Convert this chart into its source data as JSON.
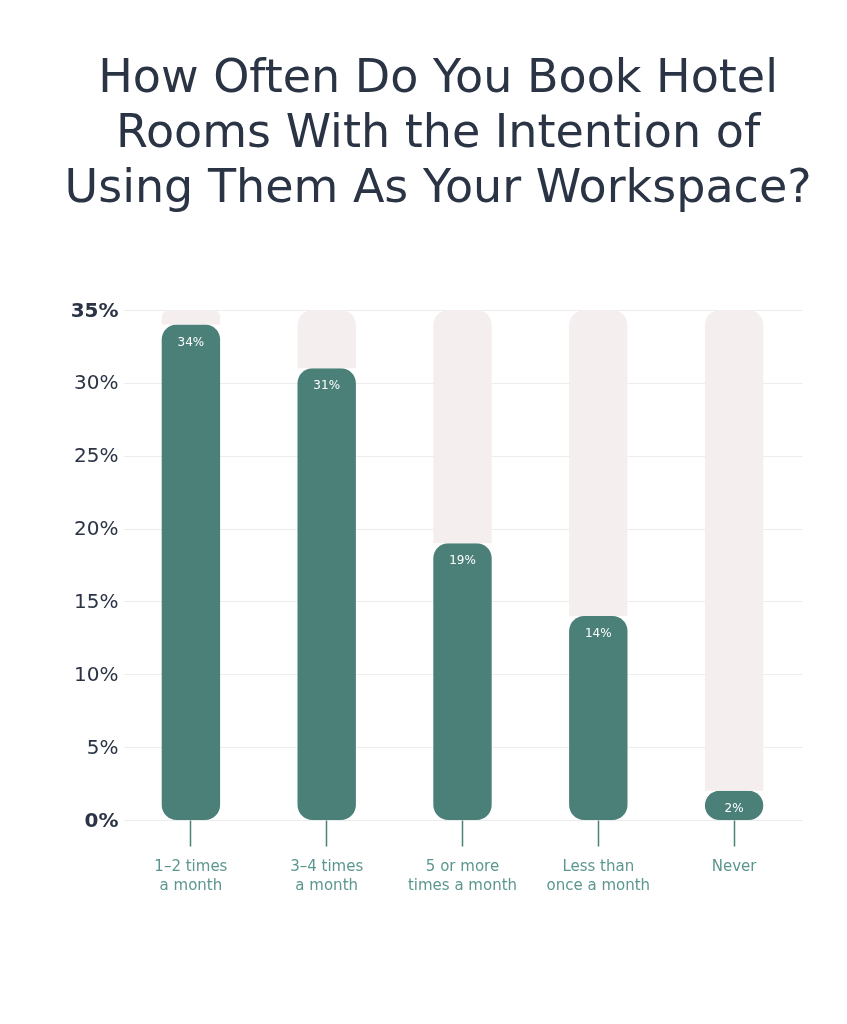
{
  "chart_data": {
    "type": "bar",
    "stacked": true,
    "title": "How Often Do You Book Hotel Rooms With the Intention of Using Them As Your Workspace?",
    "categories": [
      "1–2 times\na month",
      "3–4 times\na month",
      "5 or more\ntimes a month",
      "Less than\nonce a month",
      "Never"
    ],
    "series": [
      {
        "color": "#4a8078",
        "values": [
          34,
          31,
          19,
          14,
          2
        ],
        "value_labels": [
          "34%",
          "31%",
          "19%",
          "14%",
          "2%"
        ]
      },
      {
        "color": "#f5eeee",
        "values": [
          1,
          4,
          16,
          21,
          33
        ]
      }
    ],
    "ylim": [
      0,
      35
    ],
    "yticks": [
      {
        "value": 0,
        "label": "0%"
      },
      {
        "value": 5,
        "label": "5%"
      },
      {
        "value": 10,
        "label": "10%"
      },
      {
        "value": 15,
        "label": "15%"
      },
      {
        "value": 20,
        "label": "20%"
      },
      {
        "value": 25,
        "label": "25%"
      },
      {
        "value": 30,
        "label": "30%"
      },
      {
        "value": 35,
        "label": "35%"
      }
    ],
    "grid": "y"
  }
}
